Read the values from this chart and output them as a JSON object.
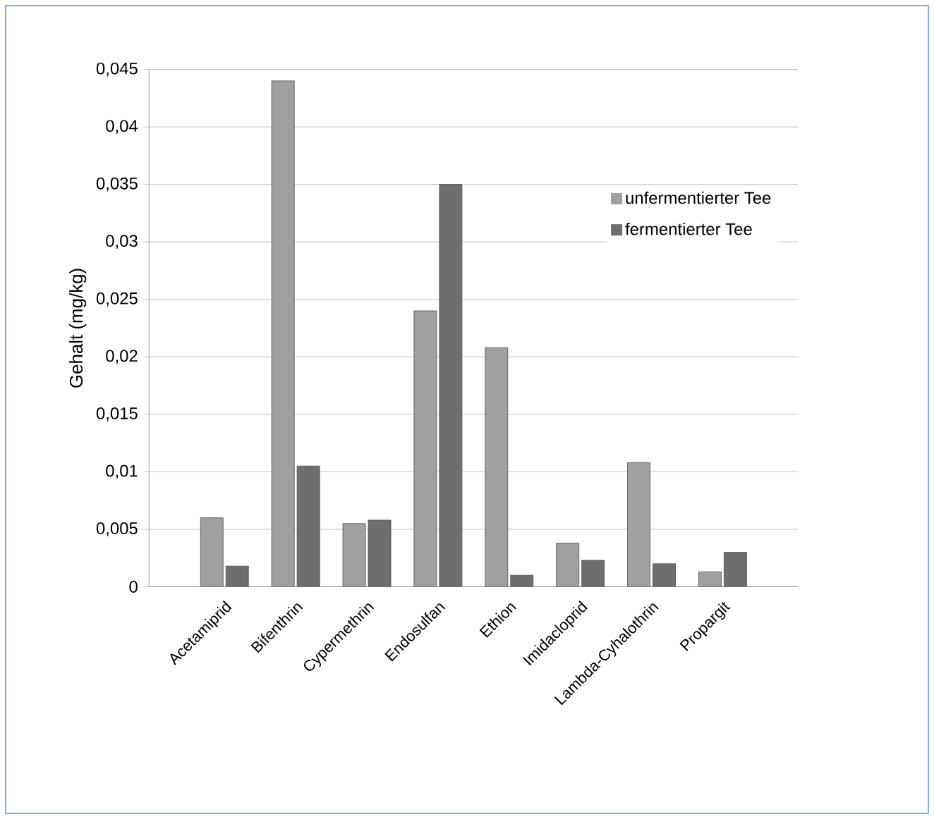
{
  "chart_data": {
    "type": "bar",
    "ylabel": "Gehalt (mg/kg)",
    "categories": [
      "Acetamiprid",
      "Bifenthrin",
      "Cypermethrin",
      "Endosulfan",
      "Ethion",
      "Imidacloprid",
      "Lambda-Cyhalothrin",
      "Propargit"
    ],
    "series": [
      {
        "name": "unfermentierter Tee",
        "color": "#a0a0a0",
        "values": [
          0.006,
          0.044,
          0.0055,
          0.024,
          0.0208,
          0.0038,
          0.0108,
          0.0013
        ]
      },
      {
        "name": "fermentierter Tee",
        "color": "#6e6e6e",
        "values": [
          0.0018,
          0.0105,
          0.0058,
          0.035,
          0.001,
          0.0023,
          0.002,
          0.003
        ]
      }
    ],
    "ylim": [
      0,
      0.045
    ],
    "yticks": [
      0,
      {
        "value": 0.005,
        "label": "0,005"
      },
      {
        "value": 0.01,
        "label": "0,01"
      },
      {
        "value": 0.015,
        "label": "0,015"
      },
      {
        "value": 0.02,
        "label": "0,02"
      },
      {
        "value": 0.025,
        "label": "0,025"
      },
      {
        "value": 0.03,
        "label": "0,03"
      },
      {
        "value": 0.035,
        "label": "0,035"
      },
      {
        "value": 0.04,
        "label": "0,04"
      },
      {
        "value": 0.045,
        "label": "0,045"
      }
    ],
    "grid": "y",
    "legend": "right"
  }
}
